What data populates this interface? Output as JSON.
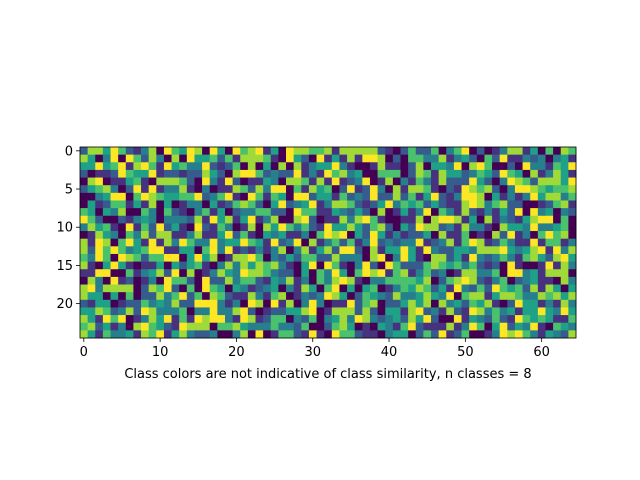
{
  "chart_data": {
    "type": "heatmap",
    "title": "",
    "xlabel": "Class colors are not indicative of class similarity, n classes = 8",
    "ylabel": "",
    "n_rows": 25,
    "n_cols": 65,
    "n_classes": 8,
    "xlim": [
      -0.5,
      64.5
    ],
    "ylim": [
      24.5,
      -0.5
    ],
    "x_ticks": [
      0,
      10,
      20,
      30,
      40,
      50,
      60
    ],
    "y_ticks": [
      0,
      5,
      10,
      15,
      20
    ],
    "grid": false,
    "legend": "none",
    "colormap": "viridis",
    "class_colors": [
      "#440154",
      "#46327e",
      "#365c8d",
      "#277f8e",
      "#1fa187",
      "#4ac16d",
      "#a0da39",
      "#fde725"
    ],
    "grid_seed": 1
  }
}
